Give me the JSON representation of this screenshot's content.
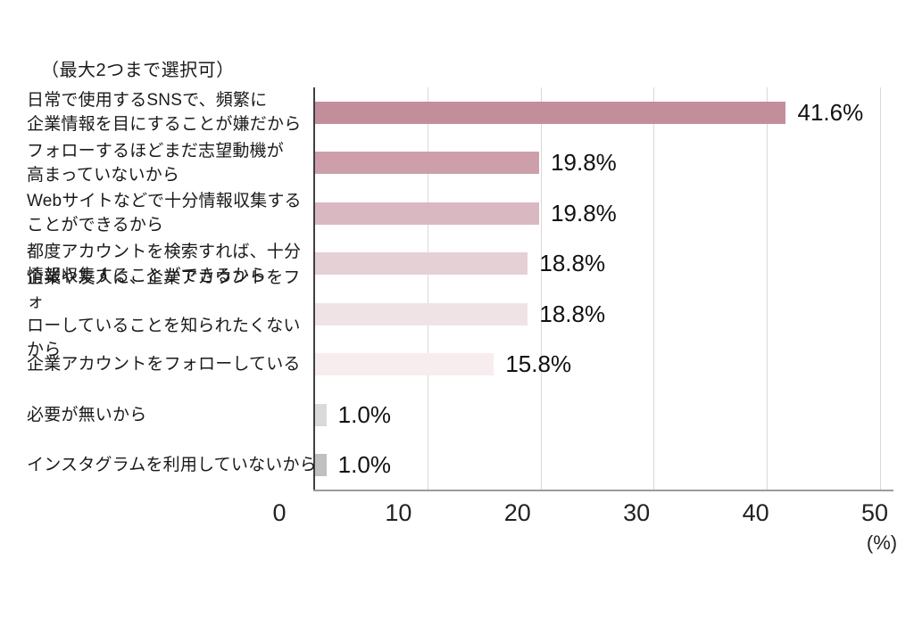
{
  "chart_data": {
    "type": "bar",
    "orientation": "horizontal",
    "note": "（最大2つまで選択可）",
    "categories": [
      "日常で使用するSNSで、頻繁に\n企業情報を目にすることが嫌だから",
      "フォローするほどまだ志望動機が\n高まっていないから",
      "Webサイトなどで十分情報収集する\nことができるから",
      "都度アカウントを検索すれば、十分\n情報収集することができるから",
      "企業や友人に、企業アカウントをフォ\nローしていることを知られたくないから",
      "企業アカウントをフォローしている",
      "必要が無いから",
      "インスタグラムを利用していないから"
    ],
    "values": [
      41.6,
      19.8,
      19.8,
      18.8,
      18.8,
      15.8,
      1.0,
      1.0
    ],
    "value_labels": [
      "41.6%",
      "19.8%",
      "19.8%",
      "18.8%",
      "18.8%",
      "15.8%",
      "1.0%",
      "1.0%"
    ],
    "bar_colors": [
      "#c48d9b",
      "#cc9fab",
      "#d9b8c1",
      "#e5d0d6",
      "#f0e3e6",
      "#f7edef",
      "#dadada",
      "#c0c0c2"
    ],
    "xlim": [
      0,
      50
    ],
    "x_ticks": [
      "0",
      "10",
      "20",
      "30",
      "40",
      "50"
    ],
    "x_unit_label": "(%)",
    "grid": true,
    "gridline_color": "#d9d9d9",
    "axis_line_color": "#3f3f3f",
    "baseline_color": "#9b9b9b",
    "text_color": "#1a1a1a"
  }
}
